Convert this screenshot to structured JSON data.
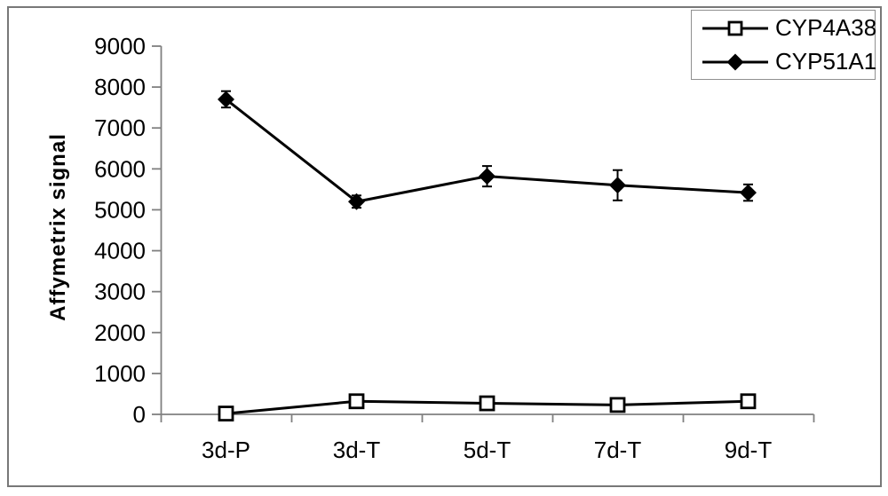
{
  "figure": {
    "background": "#ffffff",
    "border_color": "#787878",
    "axis_color": "#808080",
    "series_color": "#000000"
  },
  "chart_data": {
    "type": "line",
    "title": "",
    "xlabel": "",
    "ylabel": "Affymetrix signal",
    "categories": [
      "3d-P",
      "3d-T",
      "5d-T",
      "7d-T",
      "9d-T"
    ],
    "series": [
      {
        "name": "CYP4A38",
        "marker": "open-square",
        "color": "#000000",
        "values": [
          20,
          320,
          270,
          230,
          320
        ],
        "errors": [
          30,
          40,
          40,
          40,
          50
        ]
      },
      {
        "name": "CYP51A1",
        "marker": "filled-diamond",
        "color": "#000000",
        "values": [
          7700,
          5200,
          5820,
          5600,
          5420
        ],
        "errors": [
          200,
          150,
          250,
          370,
          200
        ]
      }
    ],
    "ylim": [
      0,
      9000
    ],
    "ytick_step": 1000,
    "grid": false,
    "legend_position": "top-right",
    "error_bars": true
  }
}
